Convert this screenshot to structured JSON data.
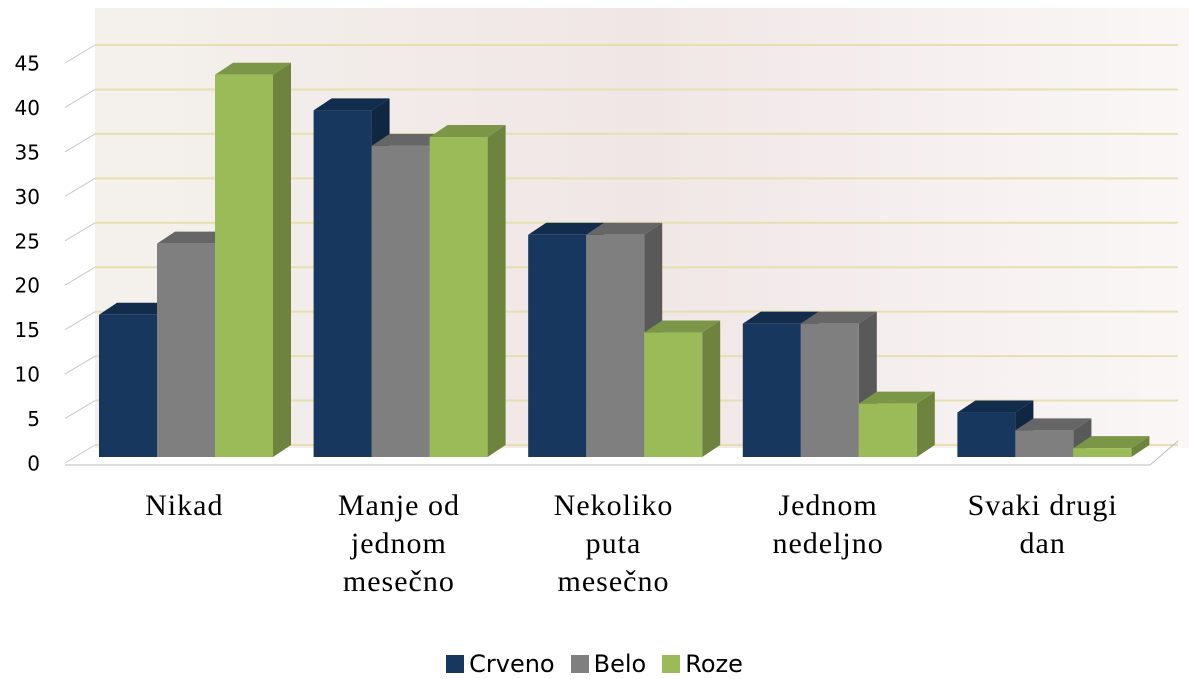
{
  "chart_data": {
    "type": "bar3d",
    "categories": [
      "Nikad",
      "Manje od jednom mesečno",
      "Nekoliko puta mesečno",
      "Jednom nedeljno",
      "Svaki drugi dan"
    ],
    "series": [
      {
        "name": "Crveno",
        "color": "#17375e",
        "values": [
          16,
          39,
          25,
          15,
          5
        ]
      },
      {
        "name": "Belo",
        "color": "#7f7f7f",
        "values": [
          24,
          35,
          25,
          15,
          3
        ]
      },
      {
        "name": "Roze",
        "color": "#9bbb59",
        "values": [
          43,
          36,
          14,
          6,
          1
        ]
      }
    ],
    "ylim": [
      0,
      45
    ],
    "yticks": [
      0,
      5,
      10,
      15,
      20,
      25,
      30,
      35,
      40,
      45
    ],
    "grid": true,
    "legend": "bottom"
  }
}
